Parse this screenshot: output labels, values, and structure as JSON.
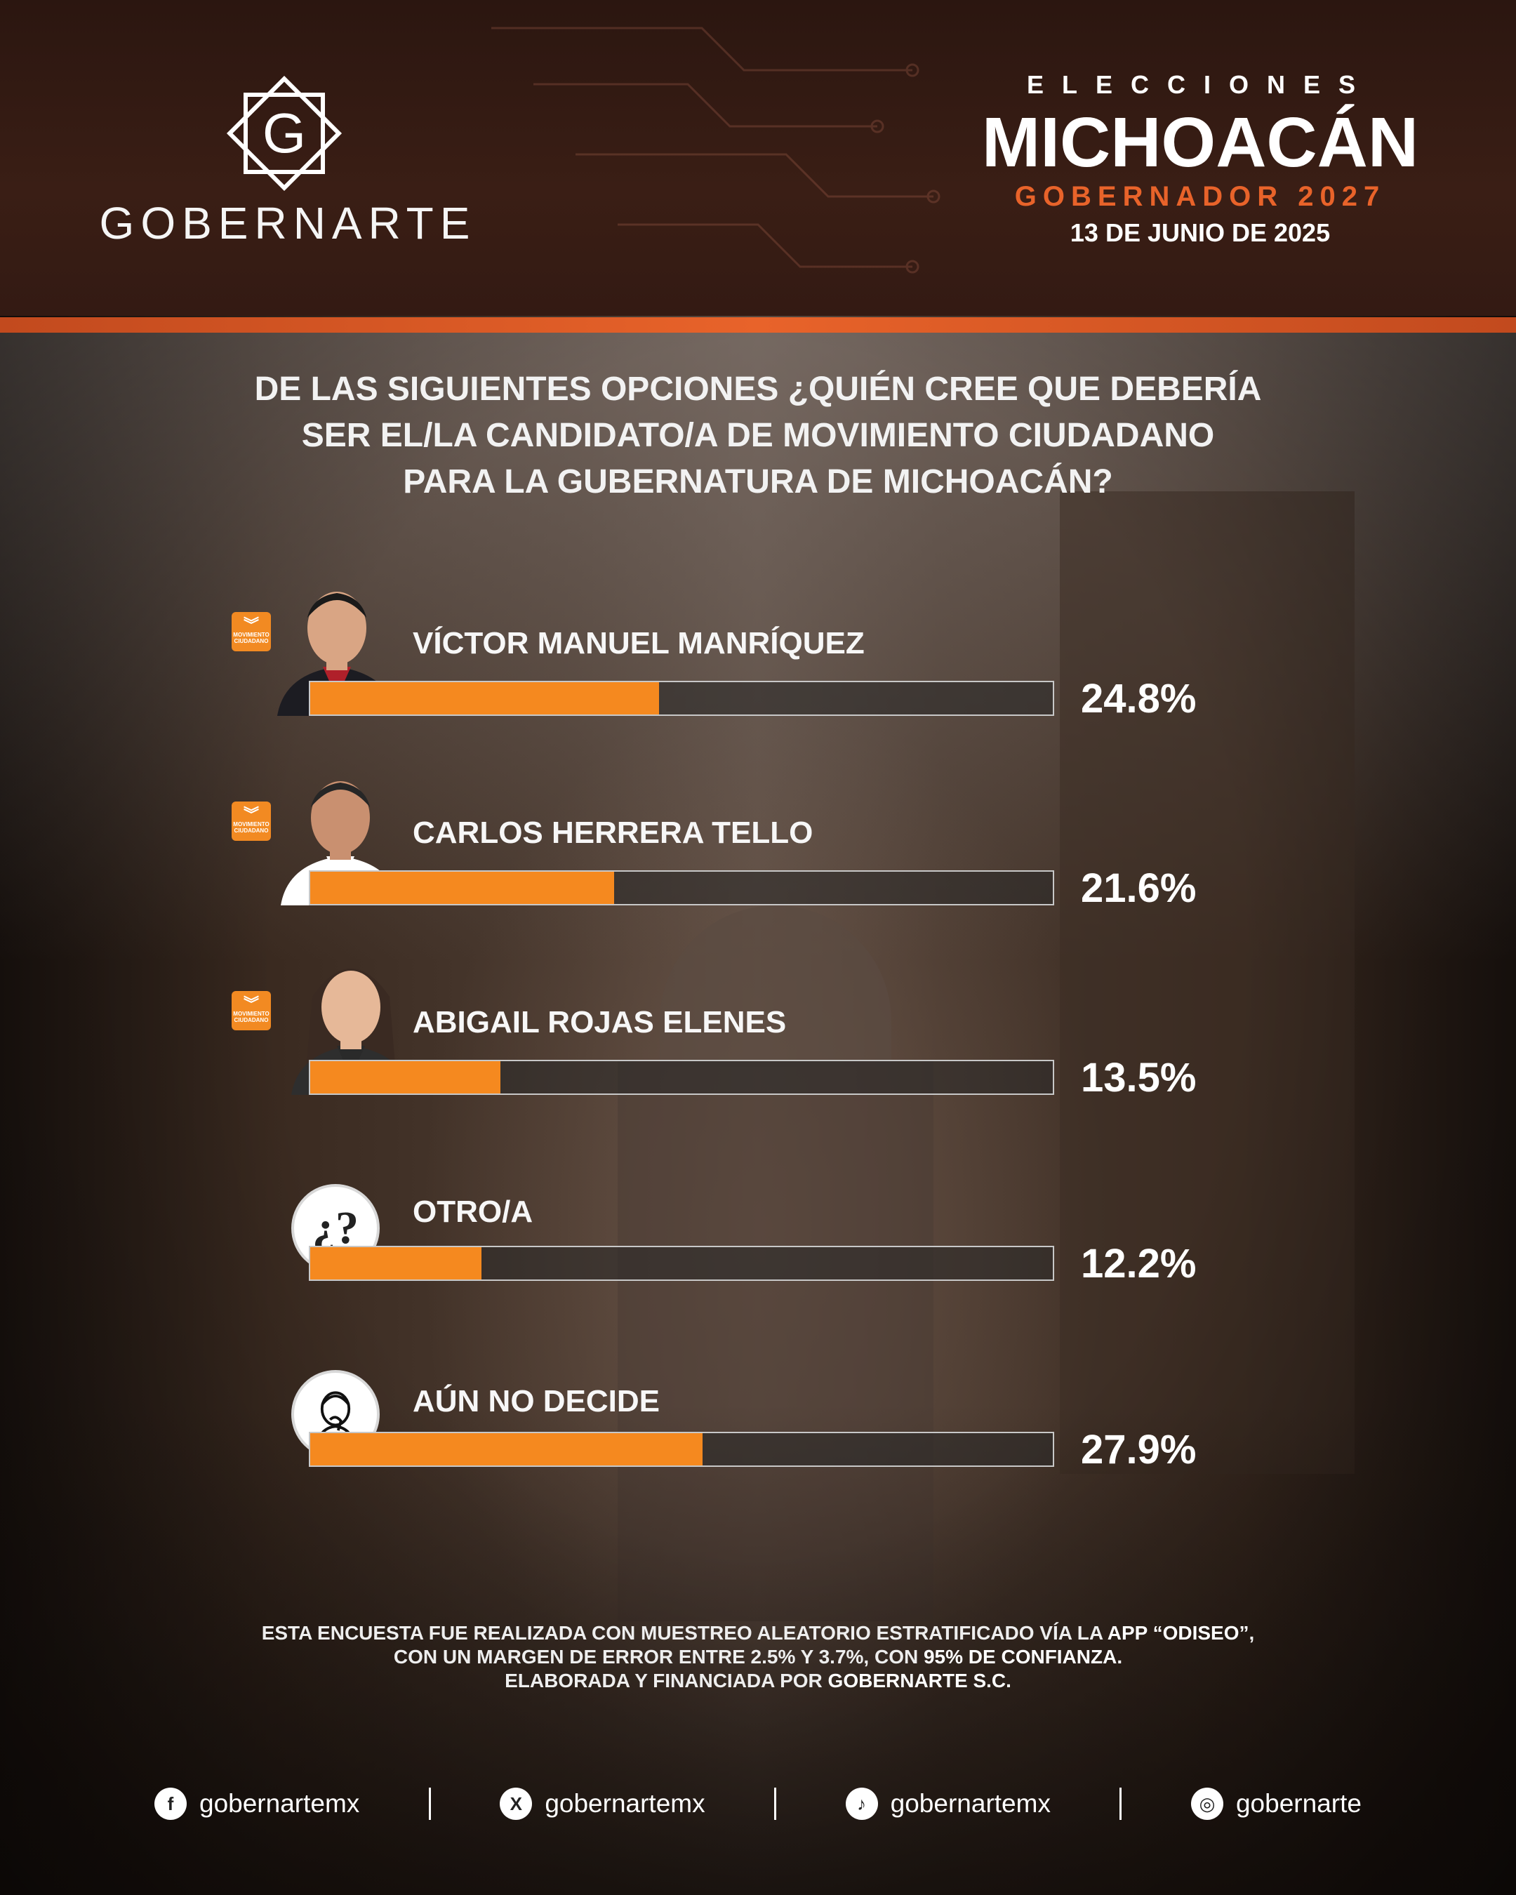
{
  "brand": {
    "name": "GOBERNARTE",
    "logo_letter": "G"
  },
  "header": {
    "eyebrow": "ELECCIONES",
    "title": "MICHOACÁN",
    "subtitle": "GOBERNADOR 2027",
    "date": "13 DE JUNIO DE 2025"
  },
  "question": {
    "line1": "DE LAS SIGUIENTES OPCIONES ¿QUIÉN CREE QUE DEBERÍA",
    "line2_prefix": "SER EL/LA CANDIDATO/A DE ",
    "line2_strong": "MOVIMIENTO CIUDADANO",
    "line3": "PARA LA GUBERNATURA DE MICHOACÁN?"
  },
  "party_badge": {
    "line1": "MOVIMIENTO",
    "line2": "CIUDADANO"
  },
  "chart_data": {
    "type": "bar",
    "orientation": "horizontal",
    "categories": [
      "VÍCTOR MANUEL MANRÍQUEZ",
      "CARLOS HERRERA TELLO",
      "ABIGAIL ROJAS ELENES",
      "OTRO/A",
      "AÚN NO DECIDE"
    ],
    "values": [
      24.8,
      21.6,
      13.5,
      12.2,
      27.9
    ],
    "value_labels": [
      "24.8%",
      "21.6%",
      "13.5%",
      "12.2%",
      "27.9%"
    ],
    "unit": "%",
    "bar_color": "#f5891f",
    "xlim": [
      0,
      53
    ]
  },
  "methodology": {
    "line1_prefix": "ESTA ENCUESTA FUE REALIZADA CON MUESTREO ALEATORIO ESTRATIFICADO VÍA LA ",
    "line1_strong": "APP “ODISEO”",
    "line1_suffix": ",",
    "line2_prefix": "CON UN MARGEN DE ERROR ENTRE 2.5% Y 3.7%, CON ",
    "line2_strong": "95% DE CONFIANZA.",
    "line3_prefix": "ELABORADA Y FINANCIADA POR ",
    "line3_strong": "GOBERNARTE S.C."
  },
  "socials": [
    {
      "network": "facebook",
      "icon": "facebook-icon",
      "handle": "gobernartemx"
    },
    {
      "network": "x",
      "icon": "x-icon",
      "handle": "gobernartemx"
    },
    {
      "network": "tiktok",
      "icon": "tiktok-icon",
      "handle": "gobernartemx"
    },
    {
      "network": "instagram",
      "icon": "instagram-icon",
      "handle": "gobernarte"
    }
  ],
  "colors": {
    "accent": "#e8632a",
    "bar": "#f5891f",
    "party": "#f28a22"
  }
}
